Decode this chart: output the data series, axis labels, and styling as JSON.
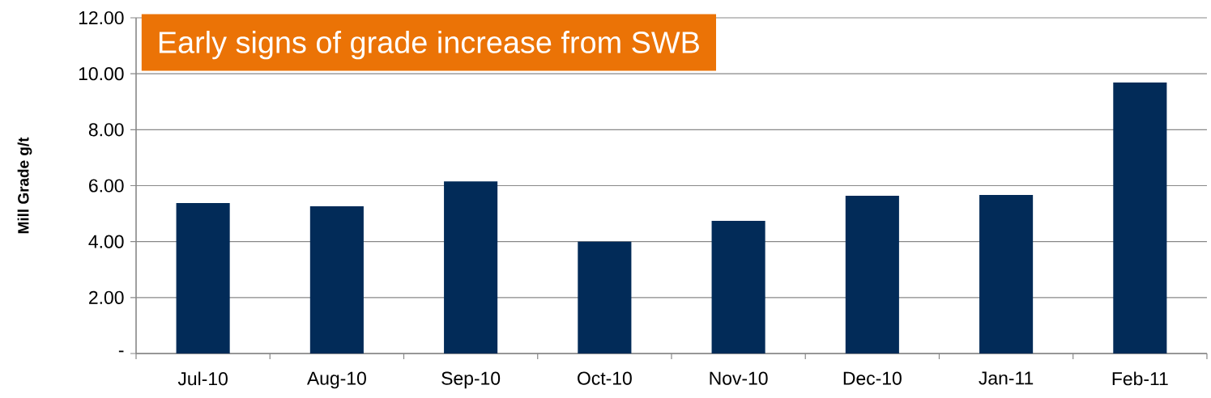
{
  "chart_data": {
    "type": "bar",
    "title": "Early signs of grade increase from SWB",
    "ylabel": "Mill Grade g/t",
    "categories": [
      "Jul-10",
      "Aug-10",
      "Sep-10",
      "Oct-10",
      "Nov-10",
      "Dec-10",
      "Jan-11",
      "Feb-11"
    ],
    "values": [
      5.38,
      5.26,
      6.15,
      4.0,
      4.74,
      5.64,
      5.67,
      9.69
    ],
    "color": "#022b58",
    "ylim": [
      0,
      12
    ],
    "yticks": [
      {
        "value": 0,
        "label": "-"
      },
      {
        "value": 2,
        "label": "2.00"
      },
      {
        "value": 4,
        "label": "4.00"
      },
      {
        "value": 6,
        "label": "6.00"
      },
      {
        "value": 8,
        "label": "8.00"
      },
      {
        "value": 10,
        "label": "10.00"
      },
      {
        "value": 12,
        "label": "12.00"
      }
    ],
    "grid": "y"
  }
}
